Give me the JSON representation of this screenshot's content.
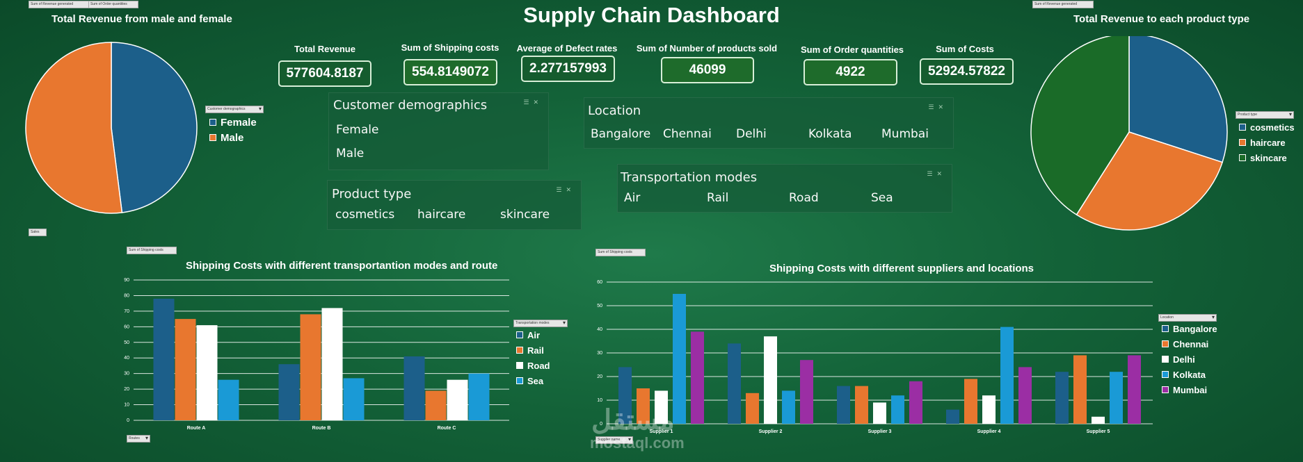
{
  "title": "Supply Chain Dashboard",
  "field_buttons": {
    "revenue_top_left": "Sum of Revenue generated",
    "order_qty_top": "Sum of Order quantities",
    "revenue_top_right": "Sum of Revenue generated",
    "sales": "Sales",
    "ship_cost_left": "Sum of Shipping costs",
    "ship_cost_right": "Sum of Shipping costs",
    "routes": "Routes",
    "supplier_name": "Supplier name",
    "customer_demographics": "Customer demographics",
    "product_type": "Product type",
    "transportation_modes": "Transportation modes",
    "location": "Location"
  },
  "kpis": [
    {
      "label": "Total Revenue",
      "value": "577604.8187"
    },
    {
      "label": "Sum of Shipping costs",
      "value": "554.8149072"
    },
    {
      "label": "Average of Defect rates",
      "value": "2.277157993"
    },
    {
      "label": "Sum of Number of products sold",
      "value": "46099"
    },
    {
      "label": "Sum of Order quantities",
      "value": "4922"
    },
    {
      "label": "Sum of Costs",
      "value": "52924.57822"
    }
  ],
  "slicers": {
    "customer_demographics": {
      "header": "Customer demographics",
      "items": [
        "Female",
        "Male"
      ]
    },
    "location": {
      "header": "Location",
      "items": [
        "Bangalore",
        "Chennai",
        "Delhi",
        "Kolkata",
        "Mumbai"
      ]
    },
    "product_type": {
      "header": "Product type",
      "items": [
        "cosmetics",
        "haircare",
        "skincare"
      ]
    },
    "transportation_modes": {
      "header": "Transportation modes",
      "items": [
        "Air",
        "Rail",
        "Road",
        "Sea"
      ]
    }
  },
  "watermark": {
    "arabic": "مستقل",
    "latin": "mostaql.com"
  },
  "colors": {
    "blue_dark": "#1c5f8a",
    "orange": "#e8772f",
    "white": "#ffffff",
    "blue_light": "#1a9ad6",
    "purple": "#9b2ea4",
    "green": "#1a6b28"
  },
  "chart_data": [
    {
      "type": "pie",
      "title": "Total Revenue from male and female",
      "categories": [
        "Female",
        "Male"
      ],
      "values": [
        48,
        52
      ],
      "colors": [
        "#1c5f8a",
        "#e8772f"
      ],
      "legend": "right"
    },
    {
      "type": "pie",
      "title": "Total Revenue to each product type",
      "categories": [
        "cosmetics",
        "haircare",
        "skincare"
      ],
      "values": [
        30,
        29,
        41
      ],
      "colors": [
        "#1c5f8a",
        "#e8772f",
        "#1a6b28"
      ],
      "legend": "right"
    },
    {
      "type": "bar",
      "title": "Shipping Costs with different transportantion modes and route",
      "categories": [
        "Route A",
        "Route B",
        "Route C"
      ],
      "series": [
        {
          "name": "Air",
          "color": "#1c5f8a",
          "values": [
            78,
            36,
            41
          ]
        },
        {
          "name": "Rail",
          "color": "#e8772f",
          "values": [
            65,
            68,
            19
          ]
        },
        {
          "name": "Road",
          "color": "#ffffff",
          "values": [
            61,
            72,
            26
          ]
        },
        {
          "name": "Sea",
          "color": "#1a9ad6",
          "values": [
            26,
            27,
            30
          ]
        }
      ],
      "ylim": [
        0,
        90
      ],
      "yticks": [
        0,
        10,
        20,
        30,
        40,
        50,
        60,
        70,
        80,
        90
      ],
      "grid": true,
      "legend": "right"
    },
    {
      "type": "bar",
      "title": "Shipping Costs with different suppliers and locations",
      "categories": [
        "Supplier 1",
        "Supplier 2",
        "Supplier 3",
        "Supplier 4",
        "Supplier 5"
      ],
      "series": [
        {
          "name": "Bangalore",
          "color": "#1c5f8a",
          "values": [
            24,
            34,
            16,
            6,
            22
          ]
        },
        {
          "name": "Chennai",
          "color": "#e8772f",
          "values": [
            15,
            13,
            16,
            19,
            29
          ]
        },
        {
          "name": "Delhi",
          "color": "#ffffff",
          "values": [
            14,
            37,
            9,
            12,
            3
          ]
        },
        {
          "name": "Kolkata",
          "color": "#1a9ad6",
          "values": [
            55,
            14,
            12,
            41,
            22
          ]
        },
        {
          "name": "Mumbai",
          "color": "#9b2ea4",
          "values": [
            39,
            27,
            18,
            24,
            29
          ]
        }
      ],
      "ylim": [
        0,
        60
      ],
      "yticks": [
        0,
        10,
        20,
        30,
        40,
        50,
        60
      ],
      "grid": true,
      "legend": "right"
    }
  ]
}
